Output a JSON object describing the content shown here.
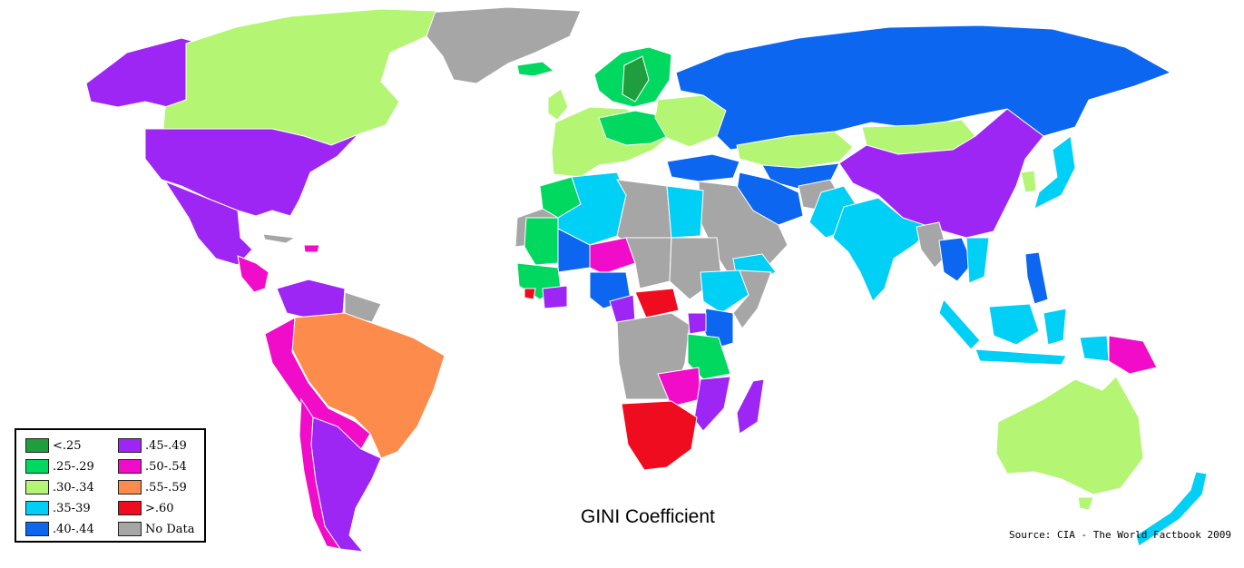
{
  "map": {
    "title": "GINI Coefficient",
    "source": "Source: CIA - The World Factbook 2009",
    "legend": [
      {
        "label": "<.25",
        "color": "#1e9e3c"
      },
      {
        "label": ".25-.29",
        "color": "#00d860"
      },
      {
        "label": ".30-.34",
        "color": "#b4f574"
      },
      {
        "label": ".35-39",
        "color": "#00cff6"
      },
      {
        "label": ".40-.44",
        "color": "#0c66f0"
      },
      {
        "label": ".45-.49",
        "color": "#9d26f4"
      },
      {
        "label": ".50-.54",
        "color": "#f00cc8"
      },
      {
        "label": ".55-.59",
        "color": "#fd8c4c"
      },
      {
        "label": ">.60",
        "color": "#ef0c1e"
      },
      {
        "label": "No Data",
        "color": "#a6a6a6"
      }
    ]
  }
}
